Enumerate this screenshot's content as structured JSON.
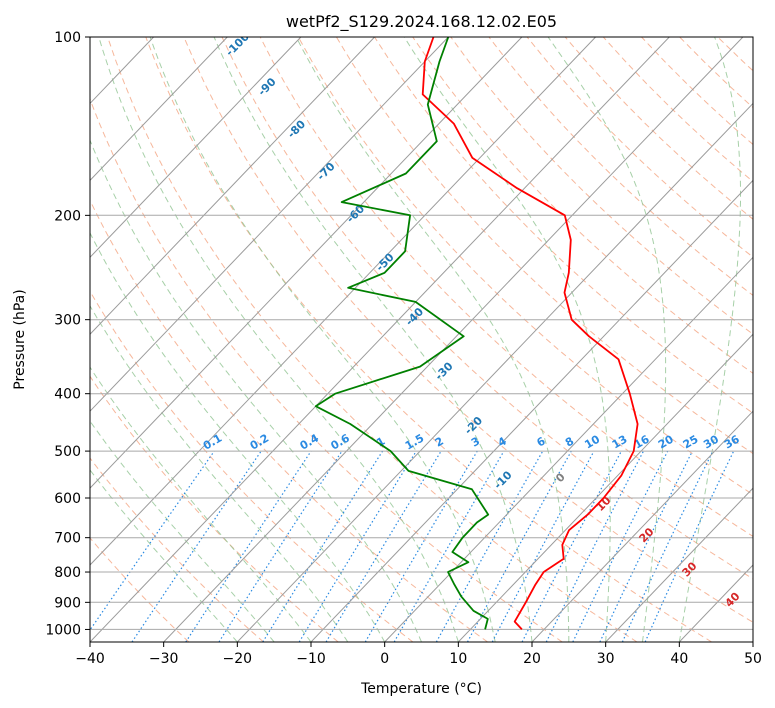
{
  "chart_data": {
    "type": "line",
    "title": "wetPf2_S129.2024.168.12.02.E05",
    "xlabel": "Temperature (°C)",
    "ylabel": "Pressure (hPa)",
    "xlim": [
      -40,
      50
    ],
    "ylim": [
      1050,
      100
    ],
    "y_scale": "log",
    "grid": true,
    "x_ticks": [
      -40,
      -30,
      -20,
      -10,
      0,
      10,
      20,
      30,
      40,
      50
    ],
    "y_ticks": [
      1000,
      900,
      800,
      700,
      600,
      500,
      400,
      300,
      200,
      100
    ],
    "skew": "skew-T log-P",
    "series": [
      {
        "color": "#ff0000",
        "points": [
          [
            17,
            1000
          ],
          [
            15,
            970
          ],
          [
            14,
            900
          ],
          [
            13,
            840
          ],
          [
            12.5,
            800
          ],
          [
            13.5,
            760
          ],
          [
            11.5,
            720
          ],
          [
            10.5,
            680
          ],
          [
            11,
            640
          ],
          [
            11,
            600
          ],
          [
            10.5,
            550
          ],
          [
            9,
            500
          ],
          [
            6,
            450
          ],
          [
            1,
            400
          ],
          [
            -5,
            350
          ],
          [
            -12,
            320
          ],
          [
            -16.5,
            300
          ],
          [
            -21,
            270
          ],
          [
            -23,
            250
          ],
          [
            -27,
            220
          ],
          [
            -31,
            200
          ],
          [
            -41,
            180
          ],
          [
            -51,
            160
          ],
          [
            -58,
            140
          ],
          [
            -66,
            125
          ],
          [
            -70,
            110
          ],
          [
            -72,
            100
          ]
        ]
      },
      {
        "color": "#008000",
        "points": [
          [
            12,
            1000
          ],
          [
            11,
            960
          ],
          [
            8,
            930
          ],
          [
            4.5,
            880
          ],
          [
            2,
            840
          ],
          [
            -0.5,
            800
          ],
          [
            1,
            770
          ],
          [
            -2.5,
            740
          ],
          [
            -3,
            700
          ],
          [
            -3,
            660
          ],
          [
            -2.5,
            640
          ],
          [
            -8,
            580
          ],
          [
            -19,
            540
          ],
          [
            -24,
            500
          ],
          [
            -33,
            450
          ],
          [
            -40,
            420
          ],
          [
            -39,
            400
          ],
          [
            -31,
            360
          ],
          [
            -29,
            320
          ],
          [
            -40,
            280
          ],
          [
            -51,
            265
          ],
          [
            -48,
            250
          ],
          [
            -48,
            230
          ],
          [
            -52,
            200
          ],
          [
            -63,
            190
          ],
          [
            -58,
            170
          ],
          [
            -58,
            150
          ],
          [
            -64,
            130
          ],
          [
            -68,
            110
          ],
          [
            -70,
            100
          ]
        ]
      }
    ],
    "annotations": {
      "dry_adiabat_labels": [
        "-100",
        "-90",
        "-80",
        "-70",
        "-60",
        "-50",
        "-40",
        "-30",
        "-20",
        "-10",
        "0",
        "10",
        "20",
        "30",
        "40"
      ],
      "mixing_ratio_labels": [
        "0.1",
        "0.2",
        "0.4",
        "0.6",
        "1",
        "1.5",
        "2",
        "3",
        "4",
        "6",
        "8",
        "10",
        "13",
        "16",
        "20",
        "25",
        "30",
        "36"
      ]
    }
  }
}
